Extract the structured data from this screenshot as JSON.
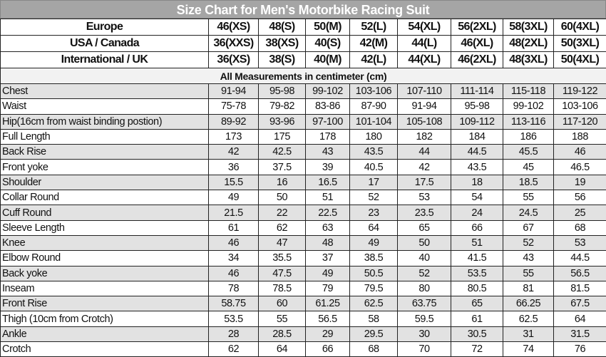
{
  "title": "Size Chart for Men's Motorbike Racing Suit",
  "header_rows": [
    {
      "label": "Europe",
      "values": [
        "46(XS)",
        "48(S)",
        "50(M)",
        "52(L)",
        "54(XL)",
        "56(2XL)",
        "58(3XL)",
        "60(4XL)"
      ]
    },
    {
      "label": "USA / Canada",
      "values": [
        "36(XXS)",
        "38(XS)",
        "40(S)",
        "42(M)",
        "44(L)",
        "46(XL)",
        "48(2XL)",
        "50(3XL)"
      ]
    },
    {
      "label": "International / UK",
      "values": [
        "36(XS)",
        "38(S)",
        "40(M)",
        "42(L)",
        "44(XL)",
        "46(2XL)",
        "48(3XL)",
        "50(4XL)"
      ]
    }
  ],
  "note": "All Measurements in centimeter (cm)",
  "rows": [
    {
      "label": "Chest",
      "values": [
        "91-94",
        "95-98",
        "99-102",
        "103-106",
        "107-110",
        "111-114",
        "115-118",
        "119-122"
      ]
    },
    {
      "label": "Waist",
      "values": [
        "75-78",
        "79-82",
        "83-86",
        "87-90",
        "91-94",
        "95-98",
        "99-102",
        "103-106"
      ]
    },
    {
      "label": "Hip(16cm from waist binding postion)",
      "values": [
        "89-92",
        "93-96",
        "97-100",
        "101-104",
        "105-108",
        "109-112",
        "113-116",
        "117-120"
      ]
    },
    {
      "label": "Full Length",
      "values": [
        "173",
        "175",
        "178",
        "180",
        "182",
        "184",
        "186",
        "188"
      ]
    },
    {
      "label": "Back Rise",
      "values": [
        "42",
        "42.5",
        "43",
        "43.5",
        "44",
        "44.5",
        "45.5",
        "46"
      ]
    },
    {
      "label": "Front yoke",
      "values": [
        "36",
        "37.5",
        "39",
        "40.5",
        "42",
        "43.5",
        "45",
        "46.5"
      ]
    },
    {
      "label": "Shoulder",
      "values": [
        "15.5",
        "16",
        "16.5",
        "17",
        "17.5",
        "18",
        "18.5",
        "19"
      ]
    },
    {
      "label": "Collar Round",
      "values": [
        "49",
        "50",
        "51",
        "52",
        "53",
        "54",
        "55",
        "56"
      ]
    },
    {
      "label": "Cuff Round",
      "values": [
        "21.5",
        "22",
        "22.5",
        "23",
        "23.5",
        "24",
        "24.5",
        "25"
      ]
    },
    {
      "label": "Sleeve Length",
      "values": [
        "61",
        "62",
        "63",
        "64",
        "65",
        "66",
        "67",
        "68"
      ]
    },
    {
      "label": "Knee",
      "values": [
        "46",
        "47",
        "48",
        "49",
        "50",
        "51",
        "52",
        "53"
      ]
    },
    {
      "label": "Elbow Round",
      "values": [
        "34",
        "35.5",
        "37",
        "38.5",
        "40",
        "41.5",
        "43",
        "44.5"
      ]
    },
    {
      "label": "Back yoke",
      "values": [
        "46",
        "47.5",
        "49",
        "50.5",
        "52",
        "53.5",
        "55",
        "56.5"
      ]
    },
    {
      "label": "Inseam",
      "values": [
        "78",
        "78.5",
        "79",
        "79.5",
        "80",
        "80.5",
        "81",
        "81.5"
      ]
    },
    {
      "label": "Front Rise",
      "values": [
        "58.75",
        "60",
        "61.25",
        "62.5",
        "63.75",
        "65",
        "66.25",
        "67.5"
      ]
    },
    {
      "label": "Thigh (10cm from Crotch)",
      "values": [
        "53.5",
        "55",
        "56.5",
        "58",
        "59.5",
        "61",
        "62.5",
        "64"
      ]
    },
    {
      "label": "Ankle",
      "values": [
        "28",
        "28.5",
        "29",
        "29.5",
        "30",
        "30.5",
        "31",
        "31.5"
      ]
    },
    {
      "label": "Crotch",
      "values": [
        "62",
        "64",
        "66",
        "68",
        "70",
        "72",
        "74",
        "76"
      ]
    }
  ],
  "colors": {
    "title_bg": "#a5a5a5",
    "stripe": "#e2e2e2",
    "note_bg": "#f2f2f2"
  }
}
